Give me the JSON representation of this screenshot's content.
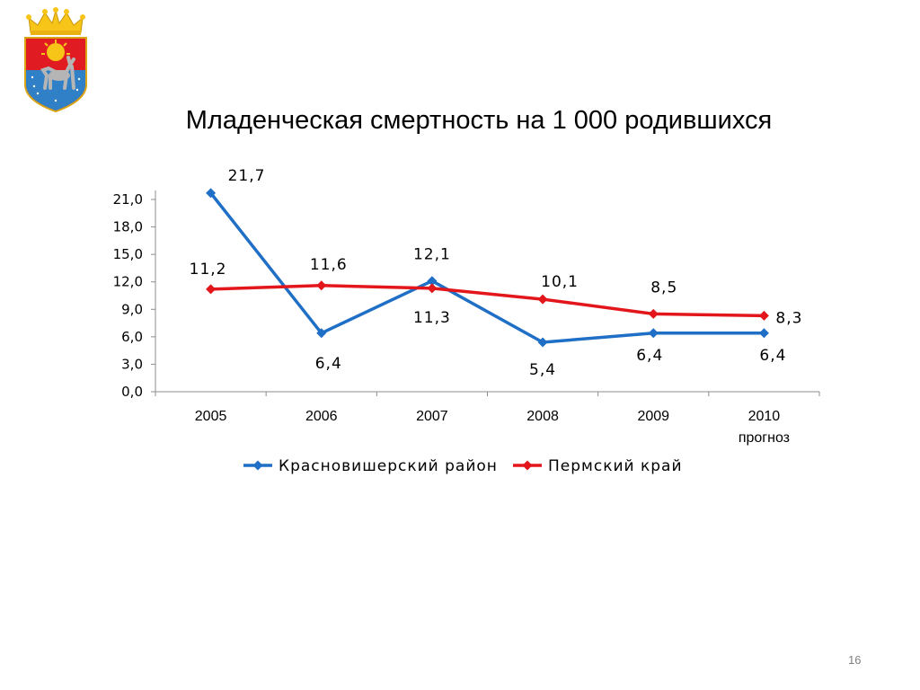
{
  "slide": {
    "title": "Младенческая смертность на 1 000 родившихся",
    "page_number": "16"
  },
  "logo": {
    "name": "coat-of-arms",
    "colors": [
      "#e11b22",
      "#2f80c6",
      "#f7c418"
    ]
  },
  "chart_data": {
    "type": "line",
    "title": "Младенческая смертность на 1 000 родившихся",
    "categories": [
      "2005",
      "2006",
      "2007",
      "2008",
      "2009",
      "2010"
    ],
    "category_sublabels": [
      "",
      "",
      "",
      "",
      "",
      "прогноз"
    ],
    "y_ticks": [
      "0,0",
      "3,0",
      "6,0",
      "9,0",
      "12,0",
      "15,0",
      "18,0",
      "21,0"
    ],
    "ylim": [
      0,
      22
    ],
    "grid": false,
    "legend_position": "bottom",
    "series": [
      {
        "name": "Красновишерский район",
        "color": "#1f6fc6",
        "values": [
          21.7,
          6.4,
          12.1,
          5.4,
          6.4,
          6.4
        ],
        "labels": [
          "21,7",
          "6,4",
          "12,1",
          "5,4",
          "6,4",
          "6,4"
        ]
      },
      {
        "name": "Пермский край",
        "color": "#e3171b",
        "values": [
          11.2,
          11.6,
          11.3,
          10.1,
          8.5,
          8.3
        ],
        "labels": [
          "11,2",
          "11,6",
          "11,3",
          "10,1",
          "8,5",
          "8,3"
        ]
      }
    ]
  }
}
